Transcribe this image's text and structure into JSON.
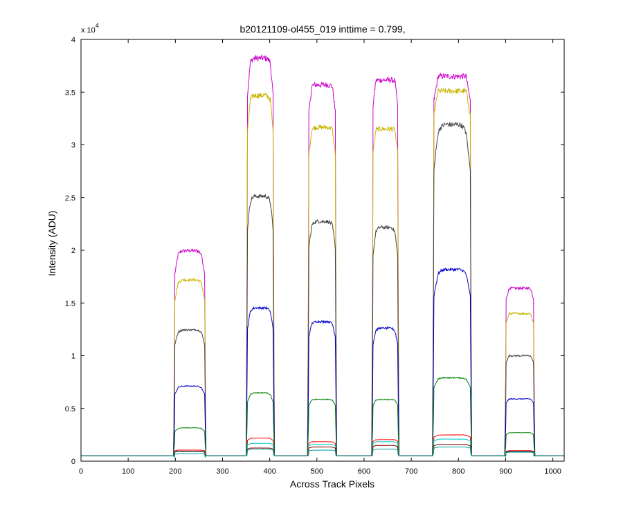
{
  "chart_data": {
    "type": "line",
    "title": "b20121109-ol455_019 inttime = 0.799,",
    "xlabel": "Across Track Pixels",
    "ylabel": "Intensity (ADU)",
    "y_multiplier_label": {
      "prefix": "x 10",
      "exponent": "4"
    },
    "xlim": [
      0,
      1024
    ],
    "ylim": [
      0,
      40000
    ],
    "x_ticks": [
      0,
      100,
      200,
      300,
      400,
      500,
      600,
      700,
      800,
      900,
      1000
    ],
    "y_ticks": [
      0,
      5000,
      10000,
      15000,
      20000,
      25000,
      30000,
      35000,
      40000
    ],
    "y_tick_labels": [
      "0",
      "0.5",
      "1",
      "1.5",
      "2",
      "2.5",
      "3",
      "3.5",
      "4"
    ],
    "grid": false,
    "baseline": 500,
    "series": [
      {
        "color": "#cc00cc",
        "levels": [
          20200,
          38500,
          35800,
          36200,
          36500,
          16400
        ],
        "dips": [
          0.08,
          0.05,
          0.02,
          0.01,
          0.0,
          0.0
        ]
      },
      {
        "color": "#c8b400",
        "levels": [
          17400,
          35000,
          31800,
          31600,
          35100,
          14000
        ],
        "dips": [
          0.08,
          0.06,
          0.03,
          0.02,
          0.0,
          0.0
        ]
      },
      {
        "color": "#404040",
        "levels": [
          12600,
          25500,
          23000,
          22500,
          32500,
          10000
        ],
        "dips": [
          0.08,
          0.1,
          0.08,
          0.1,
          0.12,
          0.0
        ]
      },
      {
        "color": "#0000cc",
        "levels": [
          7200,
          14800,
          13400,
          12800,
          18500,
          5900
        ],
        "dips": [
          0.08,
          0.12,
          0.08,
          0.1,
          0.12,
          0.0
        ]
      },
      {
        "color": "#008000",
        "levels": [
          3200,
          6600,
          5900,
          5900,
          8000,
          2700
        ],
        "dips": [
          0.08,
          0.12,
          0.05,
          0.06,
          0.08,
          0.0
        ]
      },
      {
        "color": "#ff0000",
        "levels": [
          1050,
          2200,
          1850,
          2050,
          2500,
          1000
        ],
        "dips": [
          0.0,
          0.05,
          0.03,
          0.03,
          0.03,
          0.0
        ]
      },
      {
        "color": "#00c8c8",
        "levels": [
          900,
          1700,
          1600,
          1850,
          2100,
          900
        ],
        "dips": [
          0.0,
          0.05,
          0.03,
          0.03,
          0.03,
          0.0
        ]
      },
      {
        "color": "#800000",
        "levels": [
          950,
          1250,
          1350,
          1500,
          1600,
          950
        ],
        "dips": [
          0.0,
          0.03,
          0.03,
          0.03,
          0.03,
          0.0
        ]
      },
      {
        "color": "#00a0a0",
        "levels": [
          700,
          1150,
          1050,
          1150,
          1350,
          850
        ],
        "dips": [
          0.0,
          0.03,
          0.03,
          0.03,
          0.03,
          0.0
        ]
      }
    ],
    "segments": [
      [
        198,
        263
      ],
      [
        352,
        408
      ],
      [
        482,
        540
      ],
      [
        618,
        672
      ],
      [
        747,
        826
      ],
      [
        900,
        960
      ]
    ]
  }
}
